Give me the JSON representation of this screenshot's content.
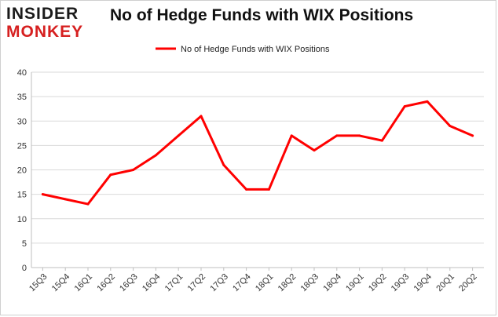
{
  "logo": {
    "top": "INSIDER",
    "bottom": "MONKEY"
  },
  "chart_data": {
    "type": "line",
    "title": "No of Hedge Funds with WIX Positions",
    "xlabel": "",
    "ylabel": "",
    "categories": [
      "15Q3",
      "15Q4",
      "16Q1",
      "16Q2",
      "16Q3",
      "16Q4",
      "17Q1",
      "17Q2",
      "17Q3",
      "17Q4",
      "18Q1",
      "18Q2",
      "18Q3",
      "18Q4",
      "19Q1",
      "19Q2",
      "19Q3",
      "19Q4",
      "20Q1",
      "20Q2"
    ],
    "series": [
      {
        "name": "No of Hedge Funds with WIX Positions",
        "values": [
          15,
          14,
          13,
          19,
          20,
          23,
          27,
          31,
          21,
          16,
          16,
          27,
          24,
          27,
          27,
          26,
          33,
          34,
          29,
          27
        ],
        "color": "#ff0000"
      }
    ],
    "yticks": [
      0,
      5,
      10,
      15,
      20,
      25,
      30,
      35,
      40
    ],
    "ylim": [
      0,
      40
    ],
    "grid": true,
    "legend_position": "top-center"
  }
}
